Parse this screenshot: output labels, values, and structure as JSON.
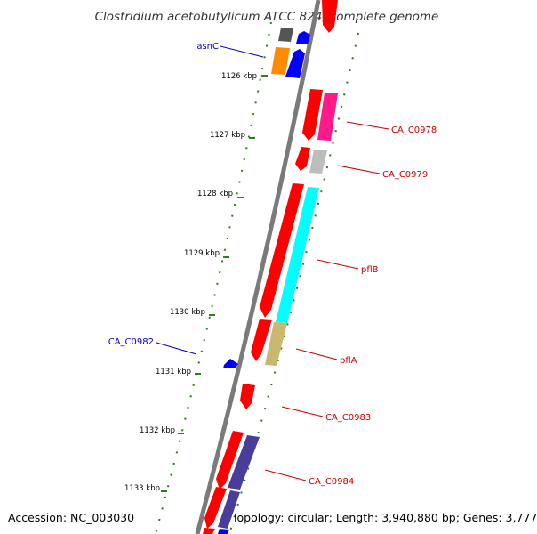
{
  "title": "Clostridium acetobutylicum ATCC 824, complete genome",
  "footer": {
    "accession": "Accession: NC_003030",
    "topology": "Topology: circular; Length: 3,940,880 bp; Genes: 3,777"
  },
  "ticks": [
    "1126 kbp",
    "1127 kbp",
    "1128 kbp",
    "1129 kbp",
    "1130 kbp",
    "1131 kbp",
    "1132 kbp",
    "1133 kbp"
  ],
  "colors": {
    "backbone": "#808080",
    "ruler": "#2e7d1e",
    "forward_label": "#0000cc",
    "reverse_label": "#cc0000",
    "gene_red": "#ff0000",
    "gene_blue": "#0000ff",
    "gene_magenta": "#ff1a8c",
    "gene_grey": "#bdbdbd",
    "gene_dark": "#555555",
    "gene_orange": "#ff8c00",
    "gene_cyan": "#00ffff",
    "gene_khaki": "#c8b870",
    "gene_purple": "#4a3d99"
  },
  "gene_labels": [
    {
      "id": "asnC",
      "text": "asnC",
      "strand": "forward"
    },
    {
      "id": "ca-c0978",
      "text": "CA_C0978",
      "strand": "reverse"
    },
    {
      "id": "ca-c0979",
      "text": "CA_C0979",
      "strand": "reverse"
    },
    {
      "id": "pflb",
      "text": "pflB",
      "strand": "reverse"
    },
    {
      "id": "ca-c0982",
      "text": "CA_C0982",
      "strand": "forward"
    },
    {
      "id": "pfla",
      "text": "pflA",
      "strand": "reverse"
    },
    {
      "id": "ca-c0983",
      "text": "CA_C0983",
      "strand": "reverse"
    },
    {
      "id": "ca-c0984",
      "text": "CA_C0984",
      "strand": "reverse"
    }
  ]
}
